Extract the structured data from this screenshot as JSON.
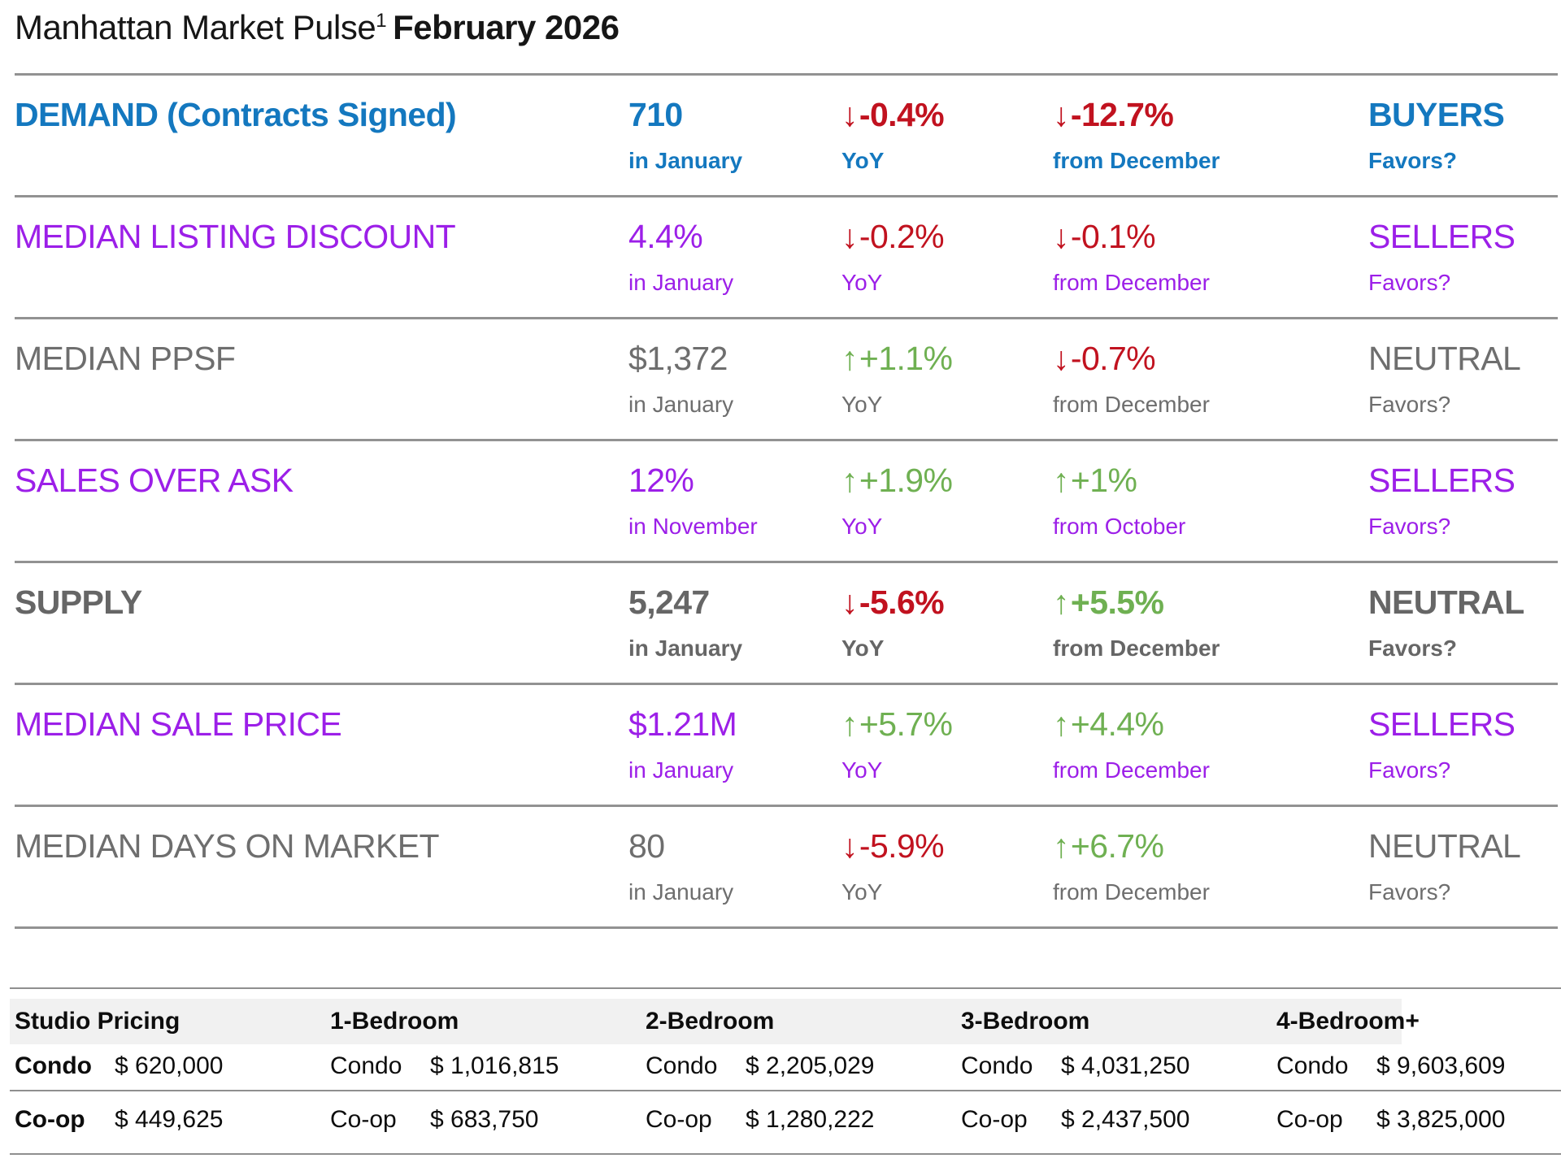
{
  "title": {
    "regular": "Manhattan Market Pulse",
    "superscript": "1",
    "bold": "February 2026"
  },
  "colors": {
    "demand_blue": "#1478bf",
    "sellers_purple": "#9c1fe8",
    "neutral_gray": "#6e6e6e",
    "supply_gray": "#666666",
    "negative_red": "#c1121f",
    "positive_green": "#6fb052",
    "rule_gray": "#929292",
    "header_band_gray": "#f1f1f1"
  },
  "metrics": [
    {
      "name": "DEMAND (Contracts Signed)",
      "value": "710",
      "value_label": "in January",
      "yoy": {
        "arrow": "↓",
        "text": "-0.4%",
        "direction": "down"
      },
      "yoy_label": "YoY",
      "mom": {
        "arrow": "↓",
        "text": "-12.7%",
        "direction": "down"
      },
      "mom_label": "from December",
      "favors": "BUYERS",
      "favors_label": "Favors?",
      "color": "#1478bf",
      "bold": true
    },
    {
      "name": "MEDIAN LISTING DISCOUNT",
      "value": "4.4%",
      "value_label": "in January",
      "yoy": {
        "arrow": "↓",
        "text": "-0.2%",
        "direction": "down"
      },
      "yoy_label": "YoY",
      "mom": {
        "arrow": "↓",
        "text": "-0.1%",
        "direction": "down"
      },
      "mom_label": "from December",
      "favors": "SELLERS",
      "favors_label": "Favors?",
      "color": "#9c1fe8",
      "bold": false
    },
    {
      "name": "MEDIAN PPSF",
      "value": "$1,372",
      "value_label": "in January",
      "yoy": {
        "arrow": "↑",
        "text": "+1.1%",
        "direction": "up"
      },
      "yoy_label": "YoY",
      "mom": {
        "arrow": "↓",
        "text": "-0.7%",
        "direction": "down"
      },
      "mom_label": "from December",
      "favors": "NEUTRAL",
      "favors_label": "Favors?",
      "color": "#6e6e6e",
      "bold": false
    },
    {
      "name": "SALES OVER ASK",
      "value": "12%",
      "value_label": "in November",
      "yoy": {
        "arrow": "↑",
        "text": "+1.9%",
        "direction": "up"
      },
      "yoy_label": "YoY",
      "mom": {
        "arrow": "↑",
        "text": "+1%",
        "direction": "up"
      },
      "mom_label": "from October",
      "favors": "SELLERS",
      "favors_label": "Favors?",
      "color": "#9c1fe8",
      "bold": false
    },
    {
      "name": "SUPPLY",
      "value": "5,247",
      "value_label": "in January",
      "yoy": {
        "arrow": "↓",
        "text": "-5.6%",
        "direction": "down"
      },
      "yoy_label": "YoY",
      "mom": {
        "arrow": "↑",
        "text": "+5.5%",
        "direction": "up"
      },
      "mom_label": "from December",
      "favors": "NEUTRAL",
      "favors_label": "Favors?",
      "color": "#666666",
      "bold": true
    },
    {
      "name": "MEDIAN SALE PRICE",
      "value": "$1.21M",
      "value_label": "in January",
      "yoy": {
        "arrow": "↑",
        "text": "+5.7%",
        "direction": "up"
      },
      "yoy_label": "YoY",
      "mom": {
        "arrow": "↑",
        "text": "+4.4%",
        "direction": "up"
      },
      "mom_label": "from December",
      "favors": "SELLERS",
      "favors_label": "Favors?",
      "color": "#9c1fe8",
      "bold": false
    },
    {
      "name": "MEDIAN DAYS ON MARKET",
      "value": "80",
      "value_label": "in January",
      "yoy": {
        "arrow": "↓",
        "text": "-5.9%",
        "direction": "down"
      },
      "yoy_label": "YoY",
      "mom": {
        "arrow": "↑",
        "text": "+6.7%",
        "direction": "up"
      },
      "mom_label": "from December",
      "favors": "NEUTRAL",
      "favors_label": "Favors?",
      "color": "#6e6e6e",
      "bold": false
    }
  ],
  "pricing_table": {
    "condo_label": "Condo",
    "coop_label": "Co-op",
    "columns": [
      {
        "header": "Studio Pricing",
        "condo": "$ 620,000",
        "coop": "$ 449,625"
      },
      {
        "header": "1-Bedroom",
        "condo": "$ 1,016,815",
        "coop": "$ 683,750"
      },
      {
        "header": "2-Bedroom",
        "condo": "$ 2,205,029",
        "coop": "$ 1,280,222"
      },
      {
        "header": "3-Bedroom",
        "condo": "$ 4,031,250",
        "coop": "$ 2,437,500"
      },
      {
        "header": "4-Bedroom+",
        "condo": "$ 9,603,609",
        "coop": "$ 3,825,000"
      }
    ]
  }
}
